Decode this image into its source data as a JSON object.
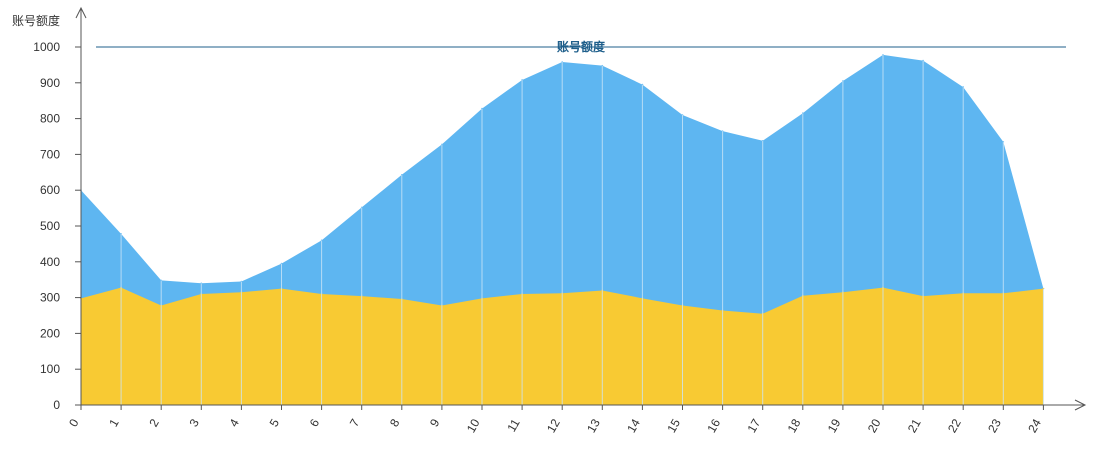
{
  "chart_data": {
    "type": "area",
    "ylabel": "账号额度",
    "x": [
      "0",
      "1",
      "2",
      "3",
      "4",
      "5",
      "6",
      "7",
      "8",
      "9",
      "10",
      "11",
      "12",
      "13",
      "14",
      "15",
      "16",
      "17",
      "18",
      "19",
      "20",
      "21",
      "22",
      "23",
      "24"
    ],
    "ylim": [
      0,
      1000
    ],
    "yticks": [
      0,
      100,
      200,
      300,
      400,
      500,
      600,
      700,
      800,
      900,
      1000
    ],
    "grid": "vertical",
    "series": [
      {
        "color": "#5eb6f1",
        "values": [
          600,
          478,
          348,
          340,
          345,
          395,
          460,
          552,
          643,
          728,
          828,
          908,
          958,
          948,
          895,
          810,
          765,
          738,
          815,
          905,
          978,
          962,
          888,
          735,
          325
        ]
      },
      {
        "color": "#f8ca33",
        "values": [
          298,
          328,
          278,
          310,
          315,
          325,
          310,
          304,
          296,
          278,
          298,
          310,
          312,
          320,
          298,
          278,
          264,
          255,
          305,
          315,
          328,
          304,
          312,
          312,
          325
        ]
      }
    ],
    "reference_line": {
      "value": 1000,
      "label": "账号额度",
      "color": "#1f5f8b"
    },
    "colors": {
      "axis": "#555555",
      "grid": "#cde6f7"
    }
  }
}
